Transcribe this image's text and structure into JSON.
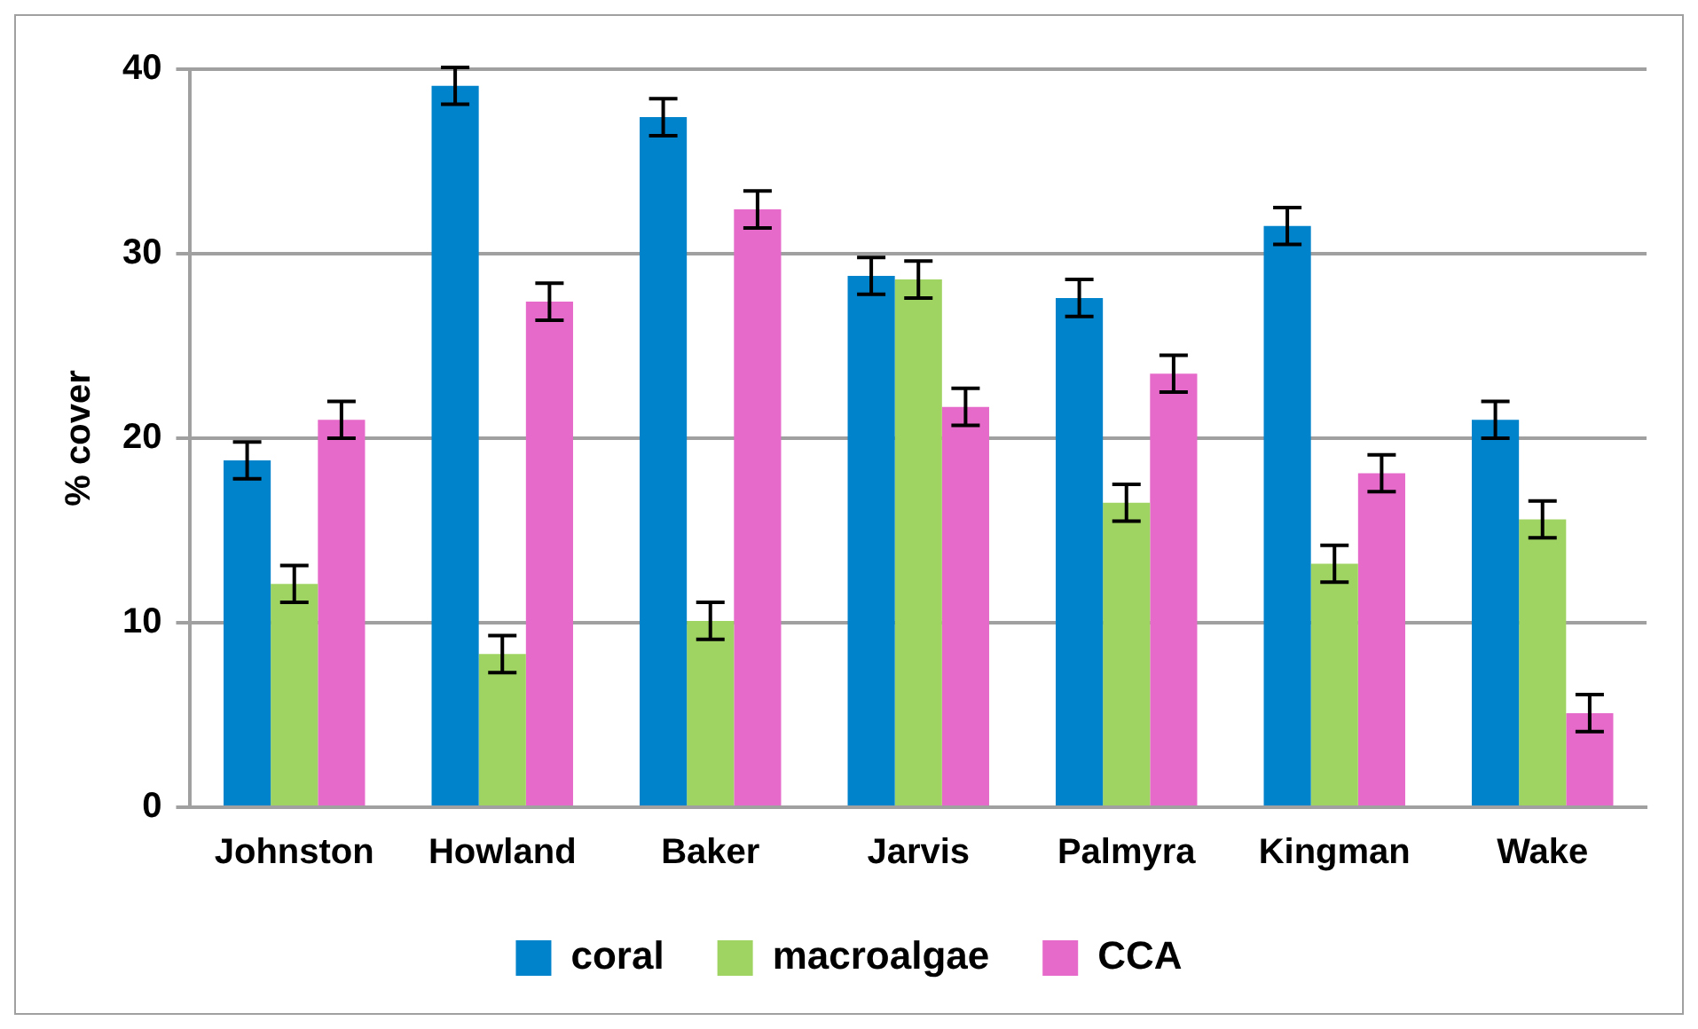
{
  "chart_data": {
    "type": "bar",
    "ylabel": "% cover",
    "categories": [
      "Johnston",
      "Howland",
      "Baker",
      "Jarvis",
      "Palmyra",
      "Kingman",
      "Wake"
    ],
    "series": [
      {
        "name": "coral",
        "color": "#0083cb",
        "values": [
          18.8,
          39.1,
          37.4,
          28.8,
          27.6,
          31.5,
          21.0
        ],
        "errors": [
          1,
          1,
          1,
          1,
          1,
          1,
          1
        ]
      },
      {
        "name": "macroalgae",
        "color": "#a0d462",
        "values": [
          12.1,
          8.3,
          10.1,
          28.6,
          16.5,
          13.2,
          15.6
        ],
        "errors": [
          1,
          1,
          1,
          1,
          1,
          1,
          1
        ]
      },
      {
        "name": "CCA",
        "color": "#e66ac9",
        "values": [
          21.0,
          27.4,
          32.4,
          21.7,
          23.5,
          18.1,
          5.1
        ],
        "errors": [
          1,
          1,
          1,
          1,
          1,
          1,
          1
        ]
      }
    ],
    "ylim": [
      0,
      40
    ],
    "yticks": [
      0,
      10,
      20,
      30,
      40
    ],
    "grid": "y",
    "legend": "bottom"
  }
}
